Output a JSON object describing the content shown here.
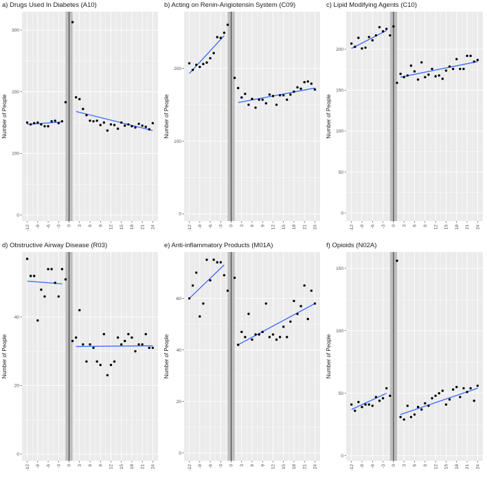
{
  "figure": {
    "background": "#ffffff",
    "panel_bg": "#ebebeb",
    "grid_color": "#ffffff",
    "fit_color": "#3366ff",
    "point_color": "#000000",
    "shade_color": "#bdbdbd"
  },
  "chart_data": [
    {
      "id": "a",
      "type": "scatter",
      "title": "a) Drugs Used In Diabetes (A10)",
      "xlabel": "",
      "ylabel": "Number of People",
      "xlim": [
        -13.5,
        25.5
      ],
      "ylim": [
        -10,
        330
      ],
      "yticks": [
        0,
        100,
        200,
        300
      ],
      "xticks": [
        -12,
        -9,
        -6,
        -3,
        0,
        3,
        6,
        9,
        12,
        15,
        18,
        21,
        24
      ],
      "shade": [
        -1,
        1
      ],
      "vline": 0,
      "points": [
        [
          -12,
          150
        ],
        [
          -11,
          147
        ],
        [
          -10,
          149
        ],
        [
          -9,
          150
        ],
        [
          -8,
          147
        ],
        [
          -7,
          144
        ],
        [
          -6,
          144
        ],
        [
          -5,
          152
        ],
        [
          -4,
          153
        ],
        [
          -3,
          149
        ],
        [
          -2,
          152
        ],
        [
          -1,
          183
        ],
        [
          1,
          313
        ],
        [
          2,
          191
        ],
        [
          3,
          188
        ],
        [
          4,
          172
        ],
        [
          5,
          162
        ],
        [
          6,
          153
        ],
        [
          7,
          152
        ],
        [
          8,
          153
        ],
        [
          9,
          146
        ],
        [
          10,
          150
        ],
        [
          11,
          137
        ],
        [
          12,
          147
        ],
        [
          13,
          146
        ],
        [
          14,
          140
        ],
        [
          15,
          150
        ],
        [
          16,
          145
        ],
        [
          17,
          147
        ],
        [
          18,
          144
        ],
        [
          19,
          142
        ],
        [
          20,
          148
        ],
        [
          21,
          145
        ],
        [
          22,
          143
        ],
        [
          23,
          139
        ],
        [
          24,
          149
        ]
      ],
      "fits": [
        {
          "x": [
            -12,
            -2
          ],
          "y": [
            147,
            151
          ]
        },
        {
          "x": [
            2,
            24
          ],
          "y": [
            168,
            137
          ]
        }
      ]
    },
    {
      "id": "b",
      "type": "scatter",
      "title": "b) Acting on Renin-Angiotensin System (C09)",
      "xlabel": "",
      "ylabel": "Number of People",
      "xlim": [
        -13.5,
        25.5
      ],
      "ylim": [
        -10,
        278
      ],
      "yticks": [
        0,
        100,
        200
      ],
      "xticks": [
        -12,
        -9,
        -6,
        -3,
        0,
        3,
        6,
        9,
        12,
        15,
        18,
        21,
        24
      ],
      "shade": [
        -1,
        1
      ],
      "vline": 0,
      "points": [
        [
          -12,
          207
        ],
        [
          -11,
          198
        ],
        [
          -10,
          205
        ],
        [
          -9,
          202
        ],
        [
          -8,
          206
        ],
        [
          -7,
          208
        ],
        [
          -6,
          214
        ],
        [
          -5,
          221
        ],
        [
          -4,
          243
        ],
        [
          -3,
          242
        ],
        [
          -2,
          249
        ],
        [
          -1,
          260
        ],
        [
          1,
          187
        ],
        [
          2,
          173
        ],
        [
          3,
          160
        ],
        [
          4,
          165
        ],
        [
          5,
          150
        ],
        [
          6,
          158
        ],
        [
          7,
          146
        ],
        [
          8,
          157
        ],
        [
          9,
          157
        ],
        [
          10,
          152
        ],
        [
          11,
          164
        ],
        [
          12,
          162
        ],
        [
          13,
          150
        ],
        [
          14,
          163
        ],
        [
          15,
          163
        ],
        [
          16,
          157
        ],
        [
          17,
          164
        ],
        [
          18,
          168
        ],
        [
          19,
          174
        ],
        [
          20,
          172
        ],
        [
          21,
          181
        ],
        [
          22,
          182
        ],
        [
          23,
          179
        ],
        [
          24,
          171
        ]
      ],
      "fits": [
        {
          "x": [
            -12,
            -2
          ],
          "y": [
            193,
            245
          ]
        },
        {
          "x": [
            2,
            24
          ],
          "y": [
            153,
            173
          ]
        }
      ]
    },
    {
      "id": "c",
      "type": "scatter",
      "title": "c) Lipid Modifying Agents (C10)",
      "xlabel": "",
      "ylabel": "Number of People",
      "xlim": [
        -13.5,
        25.5
      ],
      "ylim": [
        -10,
        246
      ],
      "yticks": [
        0,
        50,
        100,
        150,
        200
      ],
      "xticks": [
        -12,
        -9,
        -6,
        -3,
        0,
        3,
        6,
        9,
        12,
        15,
        18,
        21,
        24
      ],
      "shade": [
        -1,
        1
      ],
      "vline": 0,
      "points": [
        [
          -12,
          207
        ],
        [
          -11,
          203
        ],
        [
          -10,
          214
        ],
        [
          -9,
          201
        ],
        [
          -8,
          202
        ],
        [
          -7,
          215
        ],
        [
          -6,
          211
        ],
        [
          -5,
          217
        ],
        [
          -4,
          227
        ],
        [
          -3,
          222
        ],
        [
          -2,
          225
        ],
        [
          -1,
          217
        ],
        [
          0,
          228
        ],
        [
          1,
          159
        ],
        [
          2,
          170
        ],
        [
          3,
          166
        ],
        [
          4,
          168
        ],
        [
          5,
          180
        ],
        [
          6,
          173
        ],
        [
          7,
          163
        ],
        [
          8,
          184
        ],
        [
          9,
          166
        ],
        [
          10,
          169
        ],
        [
          11,
          176
        ],
        [
          12,
          167
        ],
        [
          13,
          168
        ],
        [
          14,
          164
        ],
        [
          15,
          174
        ],
        [
          16,
          179
        ],
        [
          17,
          176
        ],
        [
          18,
          188
        ],
        [
          19,
          176
        ],
        [
          20,
          176
        ],
        [
          21,
          192
        ],
        [
          22,
          192
        ],
        [
          23,
          185
        ],
        [
          24,
          187
        ]
      ],
      "fits": [
        {
          "x": [
            -12,
            -2
          ],
          "y": [
            201,
            223
          ]
        },
        {
          "x": [
            2,
            24
          ],
          "y": [
            166,
            185
          ]
        }
      ]
    },
    {
      "id": "d",
      "type": "scatter",
      "title": "d) Obstructive Airway Disease (R03)",
      "xlabel": "",
      "ylabel": "Number of People",
      "xlim": [
        -13.5,
        25.5
      ],
      "ylim": [
        -2,
        59
      ],
      "yticks": [
        0,
        20,
        40
      ],
      "xticks": [
        -12,
        -9,
        -6,
        -3,
        0,
        3,
        6,
        9,
        12,
        15,
        18,
        21,
        24
      ],
      "shade": [
        -1,
        1
      ],
      "vline": 0,
      "points": [
        [
          -12,
          57
        ],
        [
          -11,
          52
        ],
        [
          -10,
          52
        ],
        [
          -9,
          39
        ],
        [
          -8,
          48
        ],
        [
          -7,
          46
        ],
        [
          -6,
          54
        ],
        [
          -5,
          54
        ],
        [
          -4,
          50
        ],
        [
          -3,
          46
        ],
        [
          -2,
          54
        ],
        [
          -1,
          51
        ],
        [
          1,
          33
        ],
        [
          2,
          34
        ],
        [
          3,
          42
        ],
        [
          4,
          32
        ],
        [
          5,
          27
        ],
        [
          6,
          32
        ],
        [
          7,
          31
        ],
        [
          8,
          27
        ],
        [
          9,
          26
        ],
        [
          10,
          35
        ],
        [
          11,
          23
        ],
        [
          12,
          26
        ],
        [
          13,
          27
        ],
        [
          14,
          34
        ],
        [
          15,
          32
        ],
        [
          16,
          33
        ],
        [
          17,
          35
        ],
        [
          18,
          34
        ],
        [
          19,
          30
        ],
        [
          20,
          32
        ],
        [
          21,
          32
        ],
        [
          22,
          35
        ],
        [
          23,
          31
        ],
        [
          24,
          31
        ]
      ],
      "fits": [
        {
          "x": [
            -12,
            -2
          ],
          "y": [
            50.5,
            49.7
          ]
        },
        {
          "x": [
            2,
            24
          ],
          "y": [
            31.4,
            31.6
          ]
        }
      ]
    },
    {
      "id": "e",
      "type": "scatter",
      "title": "e) Anti-inflammatory Products (M01A)",
      "xlabel": "",
      "ylabel": "Number of People",
      "xlim": [
        -13.5,
        25.5
      ],
      "ylim": [
        -3,
        78
      ],
      "yticks": [
        0,
        20,
        40,
        60
      ],
      "xticks": [
        -12,
        -9,
        -6,
        -3,
        0,
        3,
        6,
        9,
        12,
        15,
        18,
        21,
        24
      ],
      "shade": [
        -1,
        1
      ],
      "vline": 0,
      "points": [
        [
          -12,
          60
        ],
        [
          -11,
          65
        ],
        [
          -10,
          70
        ],
        [
          -9,
          53
        ],
        [
          -8,
          58
        ],
        [
          -7,
          75
        ],
        [
          -6,
          67
        ],
        [
          -5,
          75
        ],
        [
          -4,
          74
        ],
        [
          -3,
          74
        ],
        [
          -2,
          69
        ],
        [
          -1,
          63
        ],
        [
          1,
          68
        ],
        [
          2,
          42
        ],
        [
          3,
          47
        ],
        [
          4,
          45
        ],
        [
          5,
          54
        ],
        [
          6,
          44
        ],
        [
          7,
          46
        ],
        [
          8,
          46
        ],
        [
          9,
          47
        ],
        [
          10,
          58
        ],
        [
          11,
          45
        ],
        [
          12,
          46
        ],
        [
          13,
          44
        ],
        [
          14,
          45
        ],
        [
          15,
          49
        ],
        [
          16,
          45
        ],
        [
          17,
          51
        ],
        [
          18,
          59
        ],
        [
          19,
          54
        ],
        [
          20,
          57
        ],
        [
          21,
          65
        ],
        [
          22,
          52
        ],
        [
          23,
          63
        ],
        [
          24,
          58
        ]
      ],
      "fits": [
        {
          "x": [
            -12,
            -2
          ],
          "y": [
            60,
            73
          ]
        },
        {
          "x": [
            2,
            24
          ],
          "y": [
            42,
            58
          ]
        }
      ]
    },
    {
      "id": "f",
      "type": "scatter",
      "title": "f) Opioids (N02A)",
      "xlabel": "",
      "ylabel": "Number of People",
      "xlim": [
        -13.5,
        25.5
      ],
      "ylim": [
        -4,
        163
      ],
      "yticks": [
        0,
        50,
        100,
        150
      ],
      "xticks": [
        -12,
        -9,
        -6,
        -3,
        0,
        3,
        6,
        9,
        12,
        15,
        18,
        21,
        24
      ],
      "shade": [
        -1,
        1
      ],
      "vline": 0,
      "points": [
        [
          -12,
          41
        ],
        [
          -11,
          36
        ],
        [
          -10,
          43
        ],
        [
          -9,
          39
        ],
        [
          -8,
          41
        ],
        [
          -7,
          41
        ],
        [
          -6,
          40
        ],
        [
          -5,
          47
        ],
        [
          -4,
          44
        ],
        [
          -3,
          46
        ],
        [
          -2,
          54
        ],
        [
          -1,
          48
        ],
        [
          1,
          156
        ],
        [
          2,
          31
        ],
        [
          3,
          29
        ],
        [
          4,
          40
        ],
        [
          5,
          31
        ],
        [
          6,
          33
        ],
        [
          7,
          39
        ],
        [
          8,
          37
        ],
        [
          9,
          42
        ],
        [
          10,
          40
        ],
        [
          11,
          46
        ],
        [
          12,
          48
        ],
        [
          13,
          50
        ],
        [
          14,
          52
        ],
        [
          15,
          41
        ],
        [
          16,
          45
        ],
        [
          17,
          53
        ],
        [
          18,
          55
        ],
        [
          19,
          47
        ],
        [
          20,
          54
        ],
        [
          21,
          51
        ],
        [
          22,
          54
        ],
        [
          23,
          44
        ],
        [
          24,
          56
        ]
      ],
      "fits": [
        {
          "x": [
            -12,
            -2
          ],
          "y": [
            37,
            50
          ]
        },
        {
          "x": [
            2,
            24
          ],
          "y": [
            33,
            54
          ]
        }
      ]
    }
  ]
}
